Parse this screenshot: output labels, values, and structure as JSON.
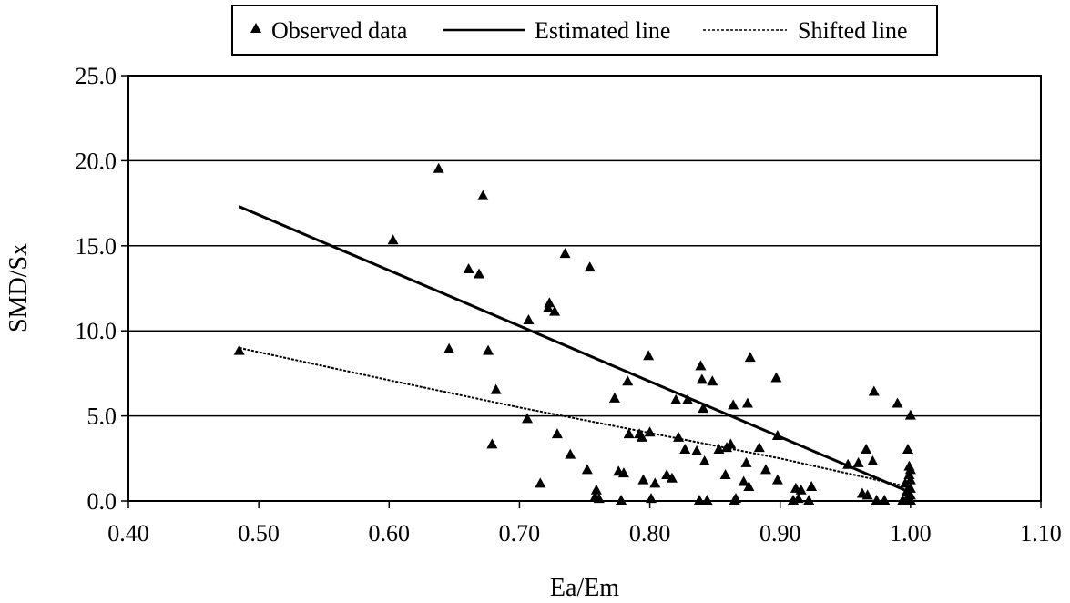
{
  "chart_data": {
    "type": "scatter",
    "title": "",
    "xlabel": "Ea/Em",
    "ylabel": "SMD/Sx",
    "xlim": [
      0.4,
      1.1
    ],
    "ylim": [
      0,
      25
    ],
    "x_ticks": [
      "0.40",
      "0.50",
      "0.60",
      "0.70",
      "0.80",
      "0.90",
      "1.00",
      "1.10"
    ],
    "y_ticks": [
      "0.0",
      "5.0",
      "10.0",
      "15.0",
      "20.0",
      "25.0"
    ],
    "grid": "horizontal",
    "legend_position": "top",
    "series": [
      {
        "name": "Observed data",
        "kind": "markers",
        "marker": "triangle",
        "points": [
          [
            0.485,
            8.8
          ],
          [
            0.603,
            15.3
          ],
          [
            0.638,
            19.5
          ],
          [
            0.646,
            8.9
          ],
          [
            0.661,
            13.6
          ],
          [
            0.669,
            13.3
          ],
          [
            0.672,
            17.9
          ],
          [
            0.676,
            8.8
          ],
          [
            0.679,
            3.3
          ],
          [
            0.682,
            6.5
          ],
          [
            0.706,
            4.8
          ],
          [
            0.707,
            10.6
          ],
          [
            0.716,
            1.0
          ],
          [
            0.722,
            11.3
          ],
          [
            0.723,
            11.6
          ],
          [
            0.727,
            11.1
          ],
          [
            0.729,
            3.9
          ],
          [
            0.735,
            14.5
          ],
          [
            0.739,
            2.7
          ],
          [
            0.752,
            1.8
          ],
          [
            0.754,
            13.7
          ],
          [
            0.758,
            0.2
          ],
          [
            0.759,
            0.6
          ],
          [
            0.761,
            0.1
          ],
          [
            0.773,
            6.0
          ],
          [
            0.776,
            1.7
          ],
          [
            0.778,
            0.0
          ],
          [
            0.78,
            1.6
          ],
          [
            0.783,
            7.0
          ],
          [
            0.784,
            3.9
          ],
          [
            0.792,
            3.9
          ],
          [
            0.794,
            3.7
          ],
          [
            0.795,
            1.2
          ],
          [
            0.799,
            8.5
          ],
          [
            0.8,
            4.0
          ],
          [
            0.801,
            0.1
          ],
          [
            0.804,
            1.0
          ],
          [
            0.813,
            1.5
          ],
          [
            0.817,
            1.3
          ],
          [
            0.82,
            5.9
          ],
          [
            0.822,
            3.7
          ],
          [
            0.827,
            3.0
          ],
          [
            0.829,
            5.9
          ],
          [
            0.836,
            2.9
          ],
          [
            0.838,
            0.0
          ],
          [
            0.839,
            7.9
          ],
          [
            0.84,
            7.1
          ],
          [
            0.841,
            5.4
          ],
          [
            0.842,
            2.3
          ],
          [
            0.844,
            0.0
          ],
          [
            0.848,
            7.0
          ],
          [
            0.853,
            3.0
          ],
          [
            0.858,
            1.5
          ],
          [
            0.859,
            3.1
          ],
          [
            0.862,
            3.3
          ],
          [
            0.864,
            5.6
          ],
          [
            0.865,
            0.0
          ],
          [
            0.866,
            0.1
          ],
          [
            0.872,
            1.1
          ],
          [
            0.874,
            2.2
          ],
          [
            0.875,
            5.7
          ],
          [
            0.876,
            0.8
          ],
          [
            0.877,
            8.4
          ],
          [
            0.884,
            3.1
          ],
          [
            0.889,
            1.8
          ],
          [
            0.897,
            7.2
          ],
          [
            0.898,
            1.2
          ],
          [
            0.898,
            3.8
          ],
          [
            0.91,
            0.0
          ],
          [
            0.912,
            0.7
          ],
          [
            0.914,
            0.1
          ],
          [
            0.916,
            0.6
          ],
          [
            0.922,
            0.0
          ],
          [
            0.924,
            0.8
          ],
          [
            0.952,
            2.1
          ],
          [
            0.96,
            2.2
          ],
          [
            0.963,
            0.4
          ],
          [
            0.966,
            3.0
          ],
          [
            0.967,
            0.3
          ],
          [
            0.971,
            2.3
          ],
          [
            0.972,
            6.4
          ],
          [
            0.974,
            0.0
          ],
          [
            0.98,
            0.0
          ],
          [
            0.99,
            5.7
          ],
          [
            0.994,
            0.0
          ],
          [
            0.996,
            1.0
          ],
          [
            0.997,
            0.5
          ],
          [
            0.998,
            3.0
          ],
          [
            0.998,
            0.2
          ],
          [
            0.999,
            1.5
          ],
          [
            0.999,
            2.0
          ],
          [
            1.0,
            5.0
          ],
          [
            1.0,
            1.2
          ],
          [
            1.0,
            0.7
          ],
          [
            1.0,
            0.3
          ],
          [
            1.0,
            0.0
          ],
          [
            1.0,
            1.8
          ]
        ]
      },
      {
        "name": "Estimated line",
        "kind": "line",
        "style": "solid",
        "points": [
          [
            0.485,
            17.3
          ],
          [
            1.0,
            0.5
          ]
        ]
      },
      {
        "name": "Shifted line",
        "kind": "line",
        "style": "dashed",
        "points": [
          [
            0.485,
            9.0
          ],
          [
            0.6,
            7.1
          ],
          [
            0.7,
            5.5
          ],
          [
            0.8,
            4.0
          ],
          [
            0.9,
            2.5
          ],
          [
            1.0,
            0.8
          ]
        ]
      }
    ]
  }
}
